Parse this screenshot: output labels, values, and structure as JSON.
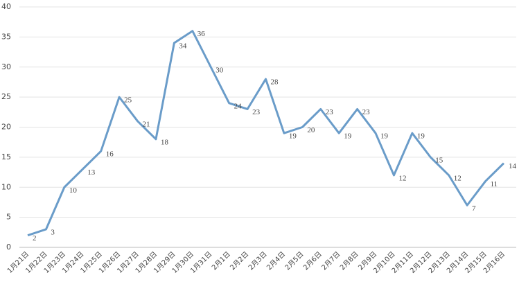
{
  "chart_data": {
    "type": "line",
    "categories": [
      "1月21日",
      "1月22日",
      "1月23日",
      "1月24日",
      "1月25日",
      "1月26日",
      "1月27日",
      "1月28日",
      "1月29日",
      "1月30日",
      "1月31日",
      "2月1日",
      "2月2日",
      "2月3日",
      "2月4日",
      "2月5日",
      "2月6日",
      "2月7日",
      "2月8日",
      "2月9日",
      "2月10日",
      "2月11日",
      "2月12日",
      "2月13日",
      "2月14日",
      "2月15日",
      "2月16日"
    ],
    "series": [
      {
        "color": "#6a9cc9",
        "values": [
          2,
          3,
          10,
          13,
          16,
          25,
          21,
          18,
          34,
          36,
          30,
          24,
          23,
          28,
          19,
          20,
          23,
          19,
          23,
          19,
          12,
          19,
          15,
          12,
          7,
          11,
          14
        ]
      }
    ],
    "ylim": [
      0,
      40
    ],
    "yticks": [
      0,
      5,
      10,
      15,
      20,
      25,
      30,
      35,
      40
    ],
    "grid": true
  }
}
